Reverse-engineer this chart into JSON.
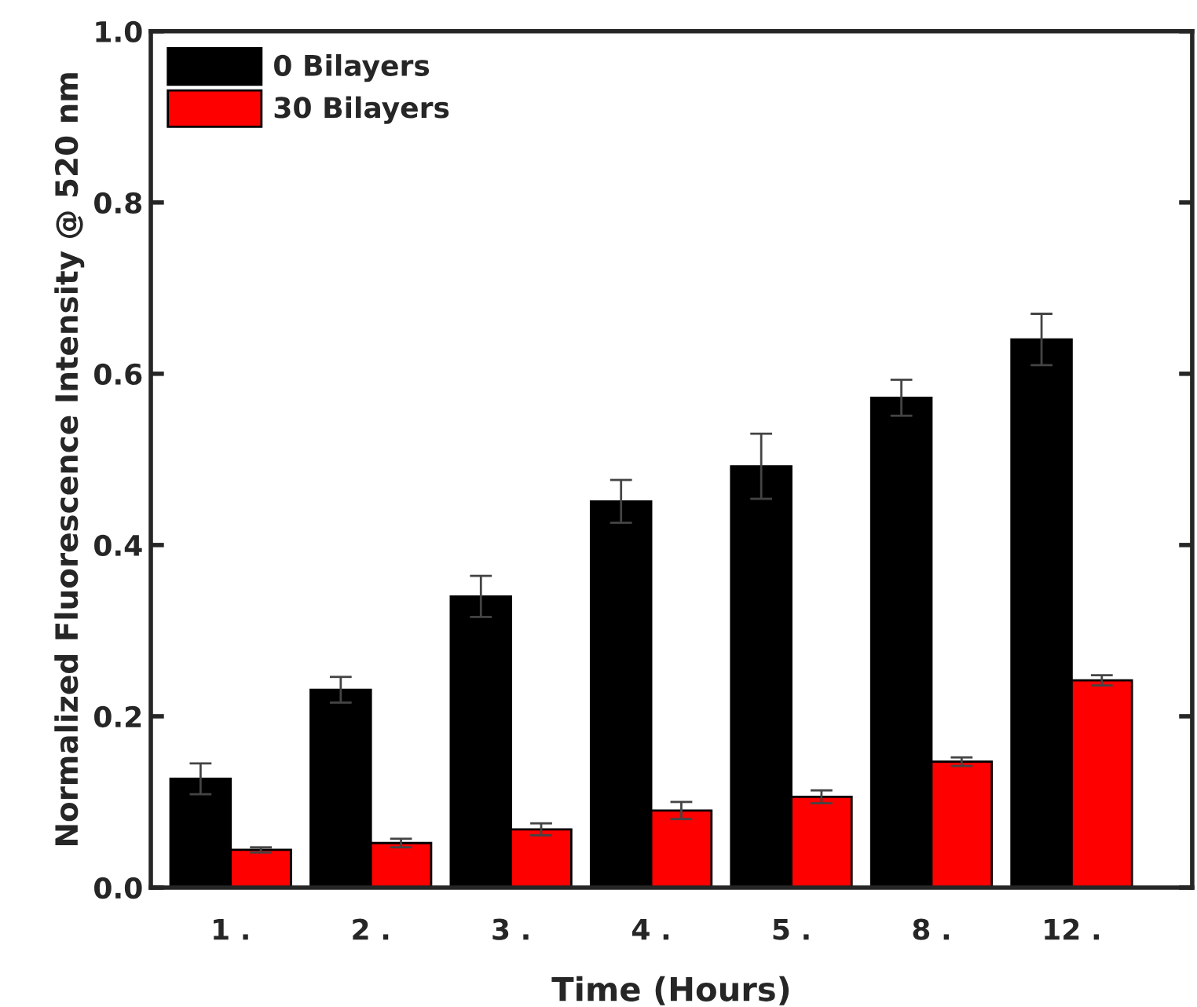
{
  "chart_data": {
    "type": "bar",
    "xlabel": "Time (Hours)",
    "ylabel": "Normalized Fluorescence Intensity @ 520 nm",
    "categories": [
      "1 .",
      "2 .",
      "3 .",
      "4 .",
      "5 .",
      "8 .",
      "12 ."
    ],
    "series": [
      {
        "name": "0 Bilayers",
        "color": "#000000",
        "values": [
          0.127,
          0.231,
          0.34,
          0.451,
          0.492,
          0.572,
          0.64
        ],
        "errors": [
          0.018,
          0.015,
          0.024,
          0.025,
          0.038,
          0.021,
          0.03
        ]
      },
      {
        "name": "30 Bilayers",
        "color": "#ff0000",
        "values": [
          0.044,
          0.052,
          0.068,
          0.09,
          0.106,
          0.147,
          0.242
        ],
        "errors": [
          0.003,
          0.005,
          0.007,
          0.01,
          0.0075,
          0.005,
          0.006
        ]
      }
    ],
    "ylim": [
      0.0,
      1.0
    ],
    "yticks": [
      {
        "value": 0.0,
        "label": "0.0"
      },
      {
        "value": 0.2,
        "label": "0.2"
      },
      {
        "value": 0.4,
        "label": "0.4"
      },
      {
        "value": 0.6,
        "label": "0.6"
      },
      {
        "value": 0.8,
        "label": "0.8"
      },
      {
        "value": 1.0,
        "label": "1.0"
      }
    ],
    "grid": false,
    "legend": "top left"
  }
}
